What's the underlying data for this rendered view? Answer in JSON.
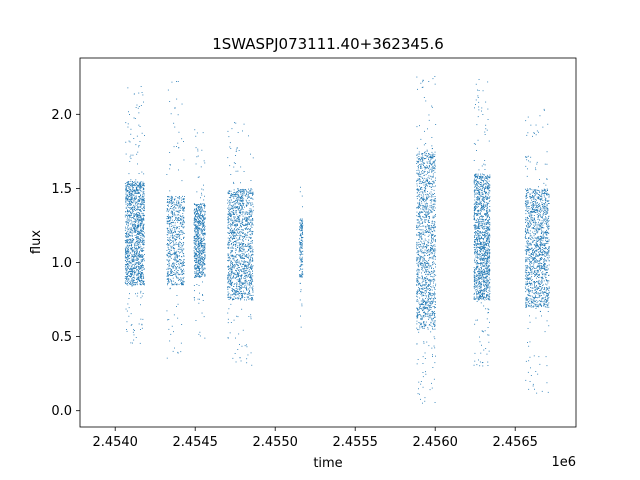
{
  "chart_data": {
    "type": "scatter",
    "title": "1SWASPJ073111.40+362345.6",
    "xlabel": "time",
    "ylabel": "flux",
    "x_offset_label": "1e6",
    "xlim": [
      2453780,
      2456880
    ],
    "ylim": [
      -0.11,
      2.38
    ],
    "xticks": [
      2454000,
      2454500,
      2455000,
      2455500,
      2456000,
      2456500
    ],
    "xtick_labels": [
      "2.4540",
      "2.4545",
      "2.4550",
      "2.4555",
      "2.4560",
      "2.4565"
    ],
    "yticks": [
      0.0,
      0.5,
      1.0,
      1.5,
      2.0
    ],
    "ytick_labels": [
      "0.0",
      "0.5",
      "1.0",
      "1.5",
      "2.0"
    ],
    "grid": false,
    "marker_color": "#1f77b4",
    "series": [
      {
        "clusters": [
          {
            "x_range": [
              2454060,
              2454180
            ],
            "y_core": [
              0.85,
              1.55
            ],
            "y_range": [
              0.45,
              2.2
            ],
            "density": "high"
          },
          {
            "x_range": [
              2454320,
              2454430
            ],
            "y_core": [
              0.85,
              1.45
            ],
            "y_range": [
              0.3,
              2.25
            ],
            "density": "medium"
          },
          {
            "x_range": [
              2454490,
              2454560
            ],
            "y_core": [
              0.9,
              1.4
            ],
            "y_range": [
              0.45,
              1.9
            ],
            "density": "medium"
          },
          {
            "x_range": [
              2454700,
              2454860
            ],
            "y_core": [
              0.75,
              1.5
            ],
            "y_range": [
              0.3,
              2.0
            ],
            "density": "high"
          },
          {
            "x_range": [
              2455150,
              2455170
            ],
            "y_core": [
              0.9,
              1.3
            ],
            "y_range": [
              0.5,
              1.6
            ],
            "density": "low"
          },
          {
            "x_range": [
              2455880,
              2456000
            ],
            "y_core": [
              0.55,
              1.75
            ],
            "y_range": [
              0.0,
              2.27
            ],
            "density": "high"
          },
          {
            "x_range": [
              2456240,
              2456340
            ],
            "y_core": [
              0.75,
              1.6
            ],
            "y_range": [
              0.3,
              2.25
            ],
            "density": "high"
          },
          {
            "x_range": [
              2456560,
              2456710
            ],
            "y_core": [
              0.7,
              1.5
            ],
            "y_range": [
              0.1,
              2.05
            ],
            "density": "high"
          }
        ]
      }
    ]
  }
}
